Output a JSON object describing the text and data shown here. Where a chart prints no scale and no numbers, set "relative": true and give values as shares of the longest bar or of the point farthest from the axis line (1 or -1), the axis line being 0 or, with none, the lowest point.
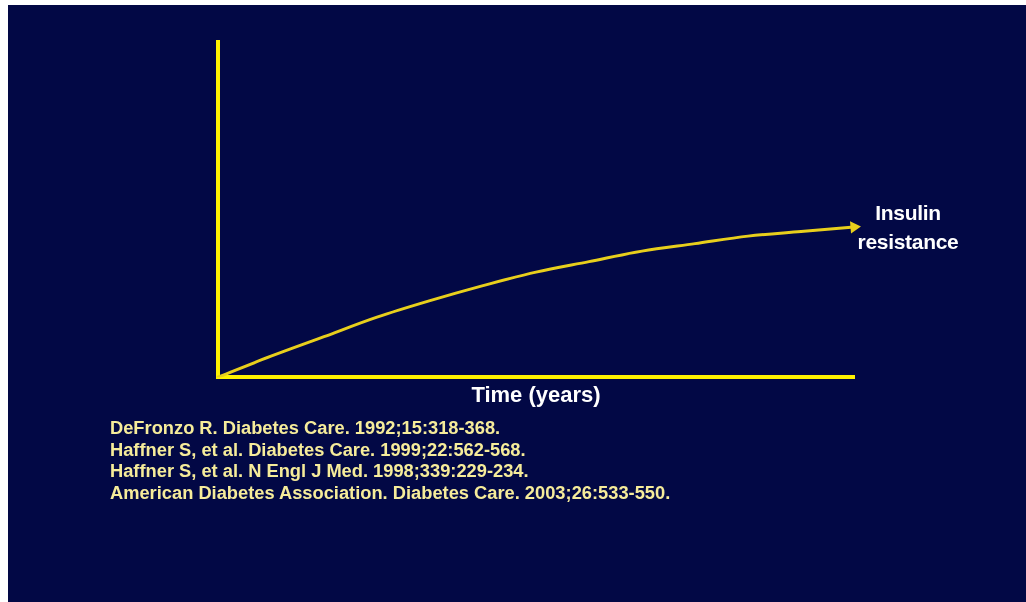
{
  "chart_data": {
    "type": "line",
    "relative": true,
    "categories": [
      null,
      null,
      null,
      null,
      null,
      null,
      null,
      null,
      null,
      null,
      null,
      null,
      null
    ],
    "series": [
      {
        "name": "Insulin resistance",
        "color": "#e8cf1c",
        "values": [
          0,
          0.14,
          0.27,
          0.4,
          0.51,
          0.61,
          0.7,
          0.77,
          0.84,
          0.89,
          0.94,
          0.97,
          1
        ]
      }
    ],
    "xlabel": "Time (years)",
    "annotations": [
      "DeFronzo R. Diabetes Care. 1992;15:318-368.",
      "Haffner S, et al. Diabetes Care. 1999;22:562-568.",
      "Haffner S, et al. N Engl J Med. 1998;339:229-234.",
      "American Diabetes Association. Diabetes Care. 2003;26:533-550."
    ],
    "marker": "none",
    "line_style": "solid",
    "grid": false,
    "legend": false
  }
}
